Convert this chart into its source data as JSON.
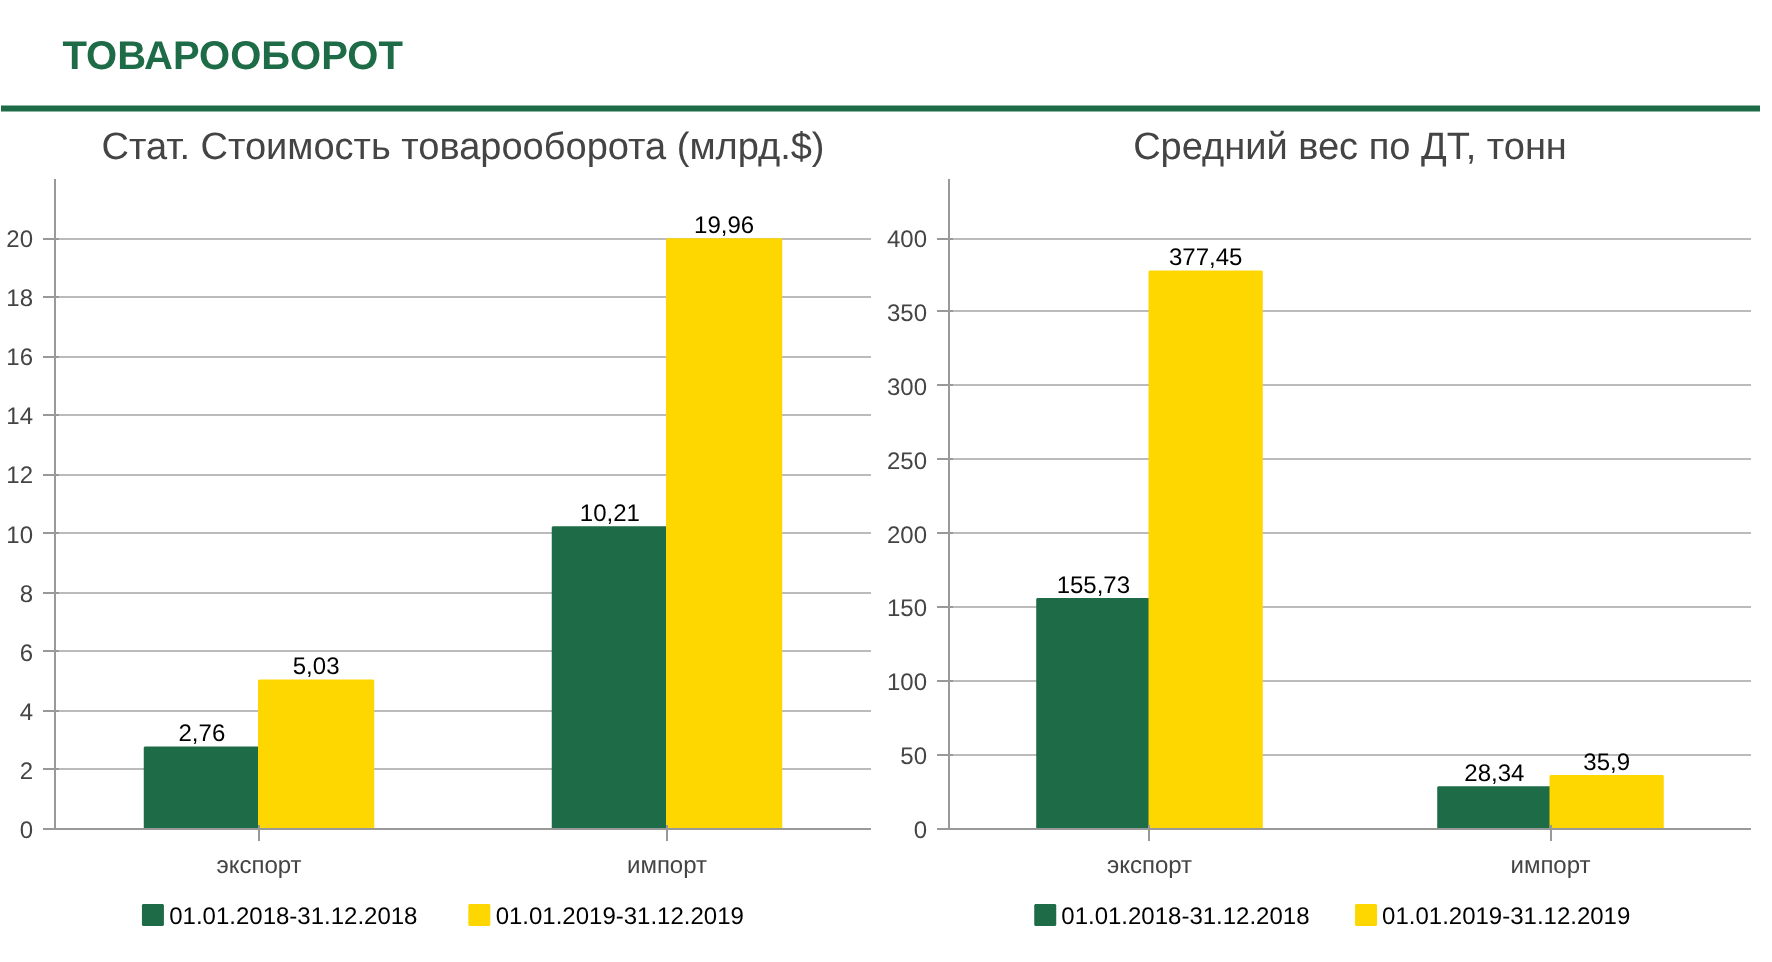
{
  "chart_data": [
    {
      "type": "other",
      "title": "ТОВАРООБОРОТ"
    },
    {
      "type": "bar",
      "title": "Стат. Стоимость товарооборота (млрд.$)",
      "categories": [
        "экспорт",
        "импорт"
      ],
      "series": [
        {
          "name": "01.01.2018-31.12.2018",
          "color": "#1e6b47",
          "values": [
            2.76,
            10.21
          ],
          "value_labels": [
            "2,76",
            "10,21"
          ]
        },
        {
          "name": "01.01.2019-31.12.2019",
          "color": "#ffd700",
          "values": [
            5.03,
            19.96
          ],
          "value_labels": [
            "5,03",
            "19,96"
          ]
        }
      ],
      "ylim": [
        0,
        22
      ],
      "yticks": [
        0,
        2,
        4,
        6,
        8,
        10,
        12,
        14,
        16,
        18,
        20
      ],
      "grid": "y",
      "legend": "bottom"
    },
    {
      "type": "bar",
      "title": "Средний вес по ДТ, тонн",
      "categories": [
        "экспорт",
        "импорт"
      ],
      "series": [
        {
          "name": "01.01.2018-31.12.2018",
          "color": "#1e6b47",
          "values": [
            155.73,
            28.34
          ],
          "value_labels": [
            "155,73",
            "28,34"
          ]
        },
        {
          "name": "01.01.2019-31.12.2019",
          "color": "#ffd700",
          "values": [
            377.45,
            35.9
          ],
          "value_labels": [
            "377,45",
            "35,9"
          ]
        }
      ],
      "ylim": [
        0,
        440
      ],
      "yticks": [
        0,
        50,
        100,
        150,
        200,
        250,
        300,
        350,
        400
      ],
      "grid": "y",
      "legend": "bottom"
    }
  ]
}
